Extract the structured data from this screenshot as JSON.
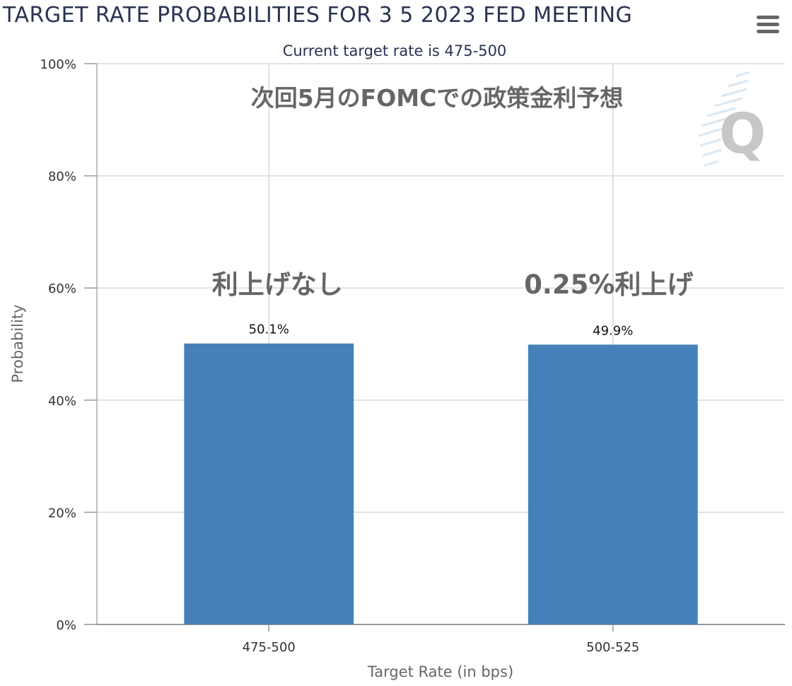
{
  "header": {
    "title": "TARGET RATE PROBABILITIES FOR 3 5 2023 FED MEETING",
    "subtitle": "Current target rate is 475-500",
    "menu_icon": "hamburger-menu-icon"
  },
  "watermark": {
    "letter": "Q",
    "icon": "logo-watermark-icon"
  },
  "colors": {
    "bar": "#4580b8",
    "title": "#2a3352",
    "grid": "#d9d9d9",
    "annotation": "#666666"
  },
  "chart_data": {
    "type": "bar",
    "categories": [
      "475-500",
      "500-525"
    ],
    "values": [
      50.1,
      49.9
    ],
    "data_labels": [
      "50.1%",
      "49.9%"
    ],
    "title": "TARGET RATE PROBABILITIES FOR 3 5 2023 FED MEETING",
    "subtitle": "Current target rate is 475-500",
    "xlabel": "Target Rate (in bps)",
    "ylabel": "Probability",
    "ylim": [
      0,
      100
    ],
    "yticks": [
      "0%",
      "20%",
      "40%",
      "60%",
      "80%",
      "100%"
    ],
    "ytick_values": [
      0,
      20,
      40,
      60,
      80,
      100
    ],
    "grid": true,
    "annotations": {
      "headline": "次回5月のFOMCでの政策金利予想",
      "bar_notes": [
        "利上げなし",
        "0.25%利上げ"
      ]
    }
  }
}
